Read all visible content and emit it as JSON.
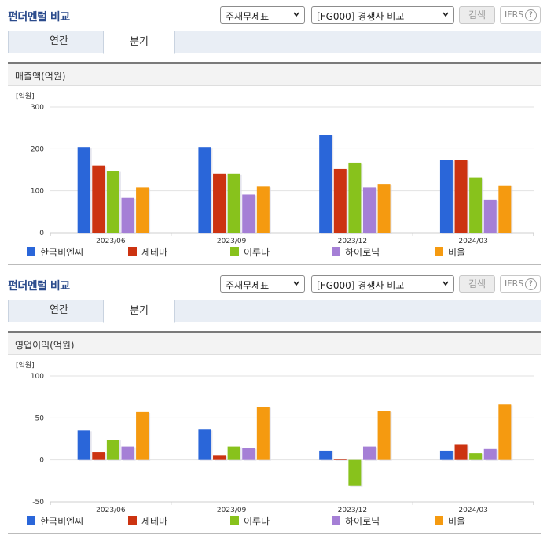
{
  "panels": [
    {
      "title": "펀더멘털 비교",
      "select_statement": "주재무제표",
      "select_compare": "[FG000] 경쟁사 비교",
      "search_label": "검색",
      "ifrs_label": "IFRS",
      "help_label": "?",
      "tabs": [
        {
          "label": "연간"
        },
        {
          "label": "분기"
        }
      ],
      "active_tab": 1,
      "chart_heading": "매출액(억원)"
    },
    {
      "title": "펀더멘털 비교",
      "select_statement": "주재무제표",
      "select_compare": "[FG000] 경쟁사 비교",
      "search_label": "검색",
      "ifrs_label": "IFRS",
      "help_label": "?",
      "tabs": [
        {
          "label": "연간"
        },
        {
          "label": "분기"
        }
      ],
      "active_tab": 1,
      "chart_heading": "영업이익(억원)"
    }
  ],
  "chart_data": [
    {
      "type": "bar",
      "title": "매출액(억원)",
      "unit_label": "[억원]",
      "categories": [
        "2023/06",
        "2023/09",
        "2023/12",
        "2024/03"
      ],
      "ylim": [
        0,
        300
      ],
      "yticks": [
        0,
        100,
        200,
        300
      ],
      "grid": true,
      "legend_position": "bottom",
      "series": [
        {
          "name": "한국비엔씨",
          "color": "#2a66d9",
          "values": [
            204,
            204,
            234,
            173
          ]
        },
        {
          "name": "제테마",
          "color": "#cc3311",
          "values": [
            160,
            141,
            152,
            173
          ]
        },
        {
          "name": "이루다",
          "color": "#88c21c",
          "values": [
            147,
            141,
            167,
            132
          ]
        },
        {
          "name": "하이로닉",
          "color": "#a57fd6",
          "values": [
            83,
            91,
            108,
            79
          ]
        },
        {
          "name": "비올",
          "color": "#f59a10",
          "values": [
            108,
            110,
            116,
            113
          ]
        }
      ]
    },
    {
      "type": "bar",
      "title": "영업이익(억원)",
      "unit_label": "[억원]",
      "categories": [
        "2023/06",
        "2023/09",
        "2023/12",
        "2024/03"
      ],
      "ylim": [
        -50,
        100
      ],
      "yticks": [
        -50,
        0,
        50,
        100
      ],
      "grid": true,
      "legend_position": "bottom",
      "series": [
        {
          "name": "한국비엔씨",
          "color": "#2a66d9",
          "values": [
            35,
            36,
            11,
            11
          ]
        },
        {
          "name": "제테마",
          "color": "#cc3311",
          "values": [
            9,
            5,
            1,
            18
          ]
        },
        {
          "name": "이루다",
          "color": "#88c21c",
          "values": [
            24,
            16,
            -31,
            8
          ]
        },
        {
          "name": "하이로닉",
          "color": "#a57fd6",
          "values": [
            16,
            14,
            16,
            13
          ]
        },
        {
          "name": "비올",
          "color": "#f59a10",
          "values": [
            57,
            63,
            58,
            66
          ]
        }
      ]
    }
  ]
}
